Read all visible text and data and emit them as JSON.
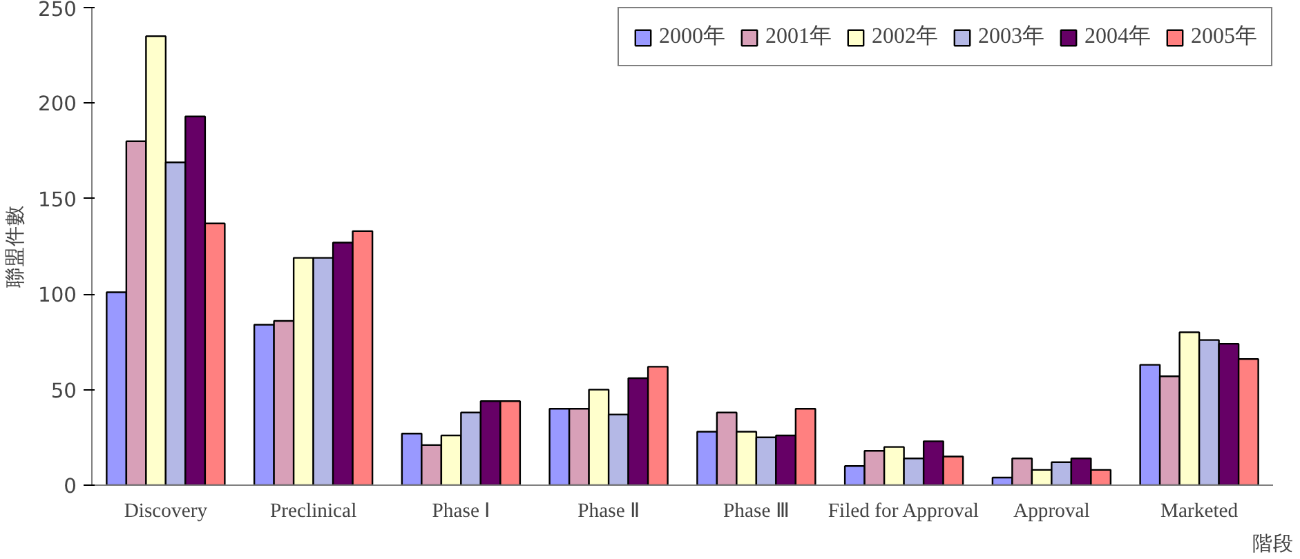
{
  "chart_data": {
    "type": "bar",
    "xlabel": "階段",
    "ylabel": "聯盟件數",
    "categories": [
      "Discovery",
      "Preclinical",
      "Phase Ⅰ",
      "Phase Ⅱ",
      "Phase Ⅲ",
      "Filed for Approval",
      "Approval",
      "Marketed"
    ],
    "series": [
      {
        "name": "2000年",
        "color": "#9999ff",
        "values": [
          101,
          84,
          27,
          40,
          28,
          10,
          4,
          63
        ]
      },
      {
        "name": "2001年",
        "color": "#d8a0b8",
        "values": [
          180,
          86,
          21,
          40,
          38,
          18,
          14,
          57
        ]
      },
      {
        "name": "2002年",
        "color": "#ffffcc",
        "values": [
          235,
          119,
          26,
          50,
          28,
          20,
          8,
          80
        ]
      },
      {
        "name": "2003年",
        "color": "#b4b8e6",
        "values": [
          169,
          119,
          38,
          37,
          25,
          14,
          12,
          76
        ]
      },
      {
        "name": "2004年",
        "color": "#660066",
        "values": [
          193,
          127,
          44,
          56,
          26,
          23,
          14,
          74
        ]
      },
      {
        "name": "2005年",
        "color": "#ff8080",
        "values": [
          137,
          133,
          44,
          62,
          40,
          15,
          8,
          66
        ]
      }
    ],
    "ylim": [
      0,
      250
    ],
    "yticks": [
      0,
      50,
      100,
      150,
      200,
      250
    ],
    "grid": false,
    "legend": "top right"
  }
}
